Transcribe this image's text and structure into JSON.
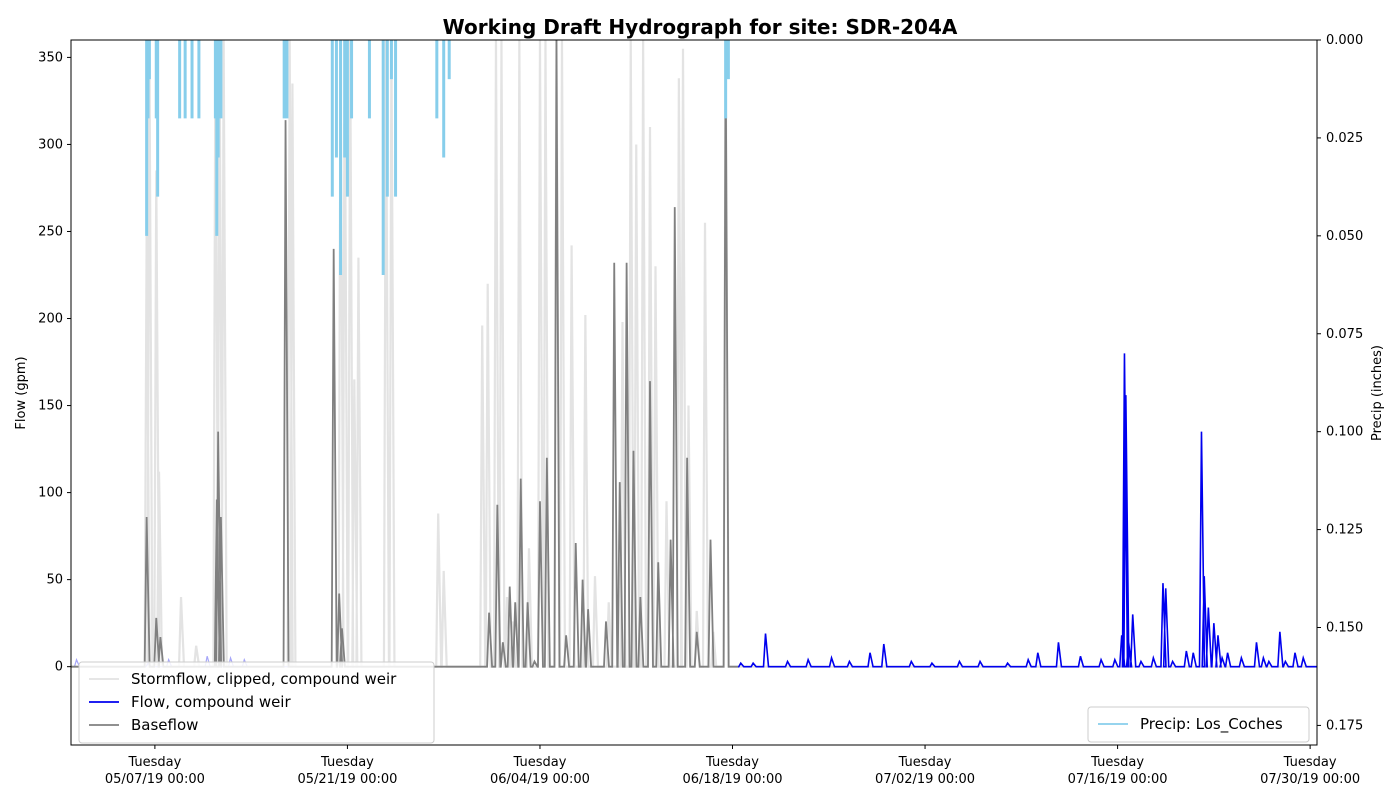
{
  "chart_data": {
    "type": "line",
    "title": "Working Draft Hydrograph for site: SDR-204A",
    "ylabel": "Flow (gpm)",
    "y2label": "Precip (inches)",
    "xlabel": "",
    "ylim": [
      -45,
      360
    ],
    "y2lim": [
      0.18,
      0.0
    ],
    "y2_inverted": true,
    "xlim_days": [
      -6.1,
      84.5
    ],
    "yticks": [
      0,
      50,
      100,
      150,
      200,
      250,
      300,
      350
    ],
    "y2ticks": [
      "0.000",
      "0.025",
      "0.050",
      "0.075",
      "0.100",
      "0.125",
      "0.150",
      "0.175"
    ],
    "y2tick_values": [
      0,
      0.025,
      0.05,
      0.075,
      0.1,
      0.125,
      0.15,
      0.175
    ],
    "xticks": [
      {
        "day": 0,
        "line1": "Tuesday",
        "line2": "05/07/19 00:00"
      },
      {
        "day": 14,
        "line1": "Tuesday",
        "line2": "05/21/19 00:00"
      },
      {
        "day": 28,
        "line1": "Tuesday",
        "line2": "06/04/19 00:00"
      },
      {
        "day": 42,
        "line1": "Tuesday",
        "line2": "06/18/19 00:00"
      },
      {
        "day": 56,
        "line1": "Tuesday",
        "line2": "07/02/19 00:00"
      },
      {
        "day": 70,
        "line1": "Tuesday",
        "line2": "07/16/19 00:00"
      },
      {
        "day": 84,
        "line1": "Tuesday",
        "line2": "07/30/19 00:00"
      }
    ],
    "legend_left": {
      "placement": "lower-left",
      "entries": [
        {
          "label": "Stormflow, clipped, compound weir",
          "color": "#e3e3e3"
        },
        {
          "label": "Flow, compound weir",
          "color": "#0000ee"
        },
        {
          "label": "Baseflow",
          "color": "#808080"
        }
      ]
    },
    "legend_right": {
      "placement": "lower-right",
      "entries": [
        {
          "label": "Precip: Los_Coches",
          "color": "#87ceeb"
        }
      ]
    },
    "series": [
      {
        "name": "Stormflow, clipped, compound weir",
        "color": "#e3e3e3",
        "peaks": [
          [
            -0.6,
            250
          ],
          [
            -0.4,
            360
          ],
          [
            0.1,
            285
          ],
          [
            0.3,
            112
          ],
          [
            1.9,
            40
          ],
          [
            3.0,
            12
          ],
          [
            4.4,
            360
          ],
          [
            4.7,
            360
          ],
          [
            5.0,
            360
          ],
          [
            9.8,
            360
          ],
          [
            10.0,
            335
          ],
          [
            13.5,
            360
          ],
          [
            13.8,
            360
          ],
          [
            14.2,
            360
          ],
          [
            14.5,
            165
          ],
          [
            14.8,
            235
          ],
          [
            16.8,
            360
          ],
          [
            17.2,
            360
          ],
          [
            20.6,
            88
          ],
          [
            21.0,
            55
          ],
          [
            23.8,
            196
          ],
          [
            24.2,
            220
          ],
          [
            24.8,
            360
          ],
          [
            25.2,
            360
          ],
          [
            25.6,
            40
          ],
          [
            26.0,
            26
          ],
          [
            26.5,
            360
          ],
          [
            27.2,
            68
          ],
          [
            28.0,
            360
          ],
          [
            28.4,
            360
          ],
          [
            29.2,
            360
          ],
          [
            29.6,
            360
          ],
          [
            30.3,
            242
          ],
          [
            31.3,
            202
          ],
          [
            32.0,
            52
          ],
          [
            33.0,
            37
          ],
          [
            34.0,
            198
          ],
          [
            34.6,
            360
          ],
          [
            35.0,
            300
          ],
          [
            35.5,
            360
          ],
          [
            36.0,
            310
          ],
          [
            36.4,
            230
          ],
          [
            37.2,
            95
          ],
          [
            38.1,
            338
          ],
          [
            38.4,
            355
          ],
          [
            38.8,
            150
          ],
          [
            39.4,
            32
          ],
          [
            40.0,
            255
          ],
          [
            40.6,
            20
          ],
          [
            41.5,
            360
          ]
        ]
      },
      {
        "name": "Flow, compound weir",
        "color": "#0000ee",
        "baseline_start_day": 42.5,
        "peaks": [
          [
            -5.7,
            4
          ],
          [
            -0.5,
            2
          ],
          [
            1.0,
            4
          ],
          [
            3.8,
            6
          ],
          [
            5.5,
            5
          ],
          [
            6.5,
            4
          ],
          [
            42.6,
            2
          ],
          [
            43.5,
            2
          ],
          [
            44.4,
            19
          ],
          [
            46.0,
            3
          ],
          [
            47.5,
            4
          ],
          [
            49.2,
            5
          ],
          [
            50.5,
            3
          ],
          [
            52.0,
            8
          ],
          [
            53.0,
            13
          ],
          [
            55.0,
            3
          ],
          [
            56.5,
            2
          ],
          [
            58.5,
            3
          ],
          [
            60.0,
            3
          ],
          [
            62.0,
            2
          ],
          [
            63.5,
            4
          ],
          [
            64.2,
            8
          ],
          [
            65.7,
            14
          ],
          [
            67.3,
            6
          ],
          [
            68.8,
            4
          ],
          [
            69.8,
            4
          ],
          [
            70.3,
            18
          ],
          [
            70.5,
            180
          ],
          [
            70.6,
            156
          ],
          [
            70.8,
            14
          ],
          [
            71.1,
            30
          ],
          [
            71.7,
            3
          ],
          [
            72.6,
            5
          ],
          [
            73.3,
            48
          ],
          [
            73.5,
            45
          ],
          [
            74.0,
            3
          ],
          [
            75.0,
            9
          ],
          [
            75.5,
            8
          ],
          [
            76.1,
            135
          ],
          [
            76.3,
            52
          ],
          [
            76.6,
            34
          ],
          [
            77.0,
            25
          ],
          [
            77.3,
            18
          ],
          [
            77.6,
            5
          ],
          [
            78.0,
            8
          ],
          [
            79.0,
            5
          ],
          [
            80.1,
            14
          ],
          [
            80.6,
            5
          ],
          [
            81.0,
            3
          ],
          [
            81.8,
            20
          ],
          [
            82.2,
            3
          ],
          [
            82.9,
            8
          ],
          [
            83.5,
            5
          ]
        ]
      },
      {
        "name": "Baseflow",
        "color": "#808080",
        "end_day": 42.4,
        "peaks": [
          [
            -0.6,
            86
          ],
          [
            0.1,
            28
          ],
          [
            0.4,
            17
          ],
          [
            4.5,
            96
          ],
          [
            4.6,
            135
          ],
          [
            4.8,
            86
          ],
          [
            9.5,
            314
          ],
          [
            12.5,
            0
          ],
          [
            13.0,
            240
          ],
          [
            13.4,
            42
          ],
          [
            13.6,
            22
          ],
          [
            17.0,
            0
          ],
          [
            24.3,
            31
          ],
          [
            24.9,
            93
          ],
          [
            25.3,
            14
          ],
          [
            25.8,
            46
          ],
          [
            26.2,
            37
          ],
          [
            26.6,
            108
          ],
          [
            27.1,
            37
          ],
          [
            27.6,
            3
          ],
          [
            28.0,
            95
          ],
          [
            28.5,
            120
          ],
          [
            29.2,
            360
          ],
          [
            29.9,
            18
          ],
          [
            30.6,
            71
          ],
          [
            31.1,
            50
          ],
          [
            31.5,
            33
          ],
          [
            32.8,
            26
          ],
          [
            33.4,
            232
          ],
          [
            33.8,
            106
          ],
          [
            34.3,
            232
          ],
          [
            34.8,
            124
          ],
          [
            35.3,
            40
          ],
          [
            36.0,
            164
          ],
          [
            36.6,
            60
          ],
          [
            37.5,
            73
          ],
          [
            37.8,
            264
          ],
          [
            38.7,
            120
          ],
          [
            39.4,
            20
          ],
          [
            40.4,
            73
          ],
          [
            41.5,
            360
          ]
        ]
      },
      {
        "name": "Precip: Los_Coches",
        "color": "#87ceeb",
        "axis": "secondary",
        "bars": [
          [
            -0.6,
            0.05
          ],
          [
            -0.5,
            0.02
          ],
          [
            -0.4,
            0.01
          ],
          [
            0.1,
            0.02
          ],
          [
            0.2,
            0.04
          ],
          [
            1.8,
            0.02
          ],
          [
            2.2,
            0.02
          ],
          [
            2.7,
            0.02
          ],
          [
            3.2,
            0.02
          ],
          [
            4.4,
            0.02
          ],
          [
            4.5,
            0.05
          ],
          [
            4.6,
            0.03
          ],
          [
            4.8,
            0.02
          ],
          [
            9.4,
            0.02
          ],
          [
            9.6,
            0.02
          ],
          [
            12.9,
            0.04
          ],
          [
            13.2,
            0.03
          ],
          [
            13.5,
            0.06
          ],
          [
            13.8,
            0.03
          ],
          [
            14.0,
            0.04
          ],
          [
            14.3,
            0.02
          ],
          [
            15.6,
            0.02
          ],
          [
            16.6,
            0.06
          ],
          [
            16.9,
            0.04
          ],
          [
            17.2,
            0.01
          ],
          [
            17.5,
            0.04
          ],
          [
            20.5,
            0.02
          ],
          [
            21.0,
            0.03
          ],
          [
            21.4,
            0.01
          ],
          [
            41.5,
            0.02
          ],
          [
            41.7,
            0.01
          ]
        ]
      }
    ]
  }
}
